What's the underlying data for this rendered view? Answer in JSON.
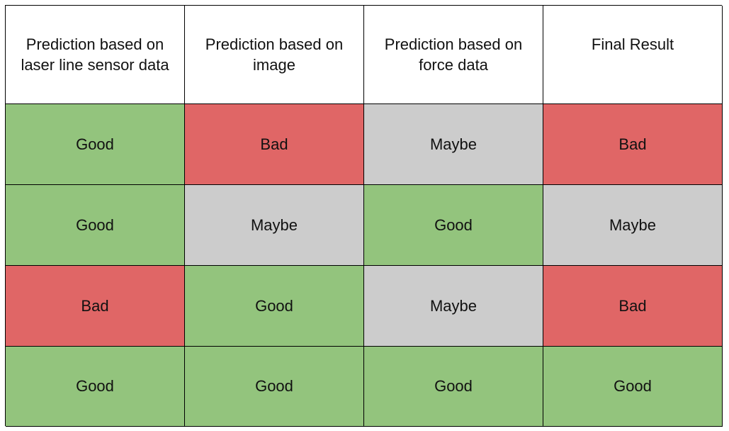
{
  "colors": {
    "good": "#93c47d",
    "bad": "#e06666",
    "maybe": "#cccccc",
    "header": "#ffffff",
    "border": "#000000"
  },
  "headers": [
    "Prediction based on laser line sensor data",
    "Prediction based on image",
    "Prediction based on force data",
    "Final Result"
  ],
  "rows": [
    [
      "Good",
      "Bad",
      "Maybe",
      "Bad"
    ],
    [
      "Good",
      "Maybe",
      "Good",
      "Maybe"
    ],
    [
      "Bad",
      "Good",
      "Maybe",
      "Bad"
    ],
    [
      "Good",
      "Good",
      "Good",
      "Good"
    ]
  ]
}
